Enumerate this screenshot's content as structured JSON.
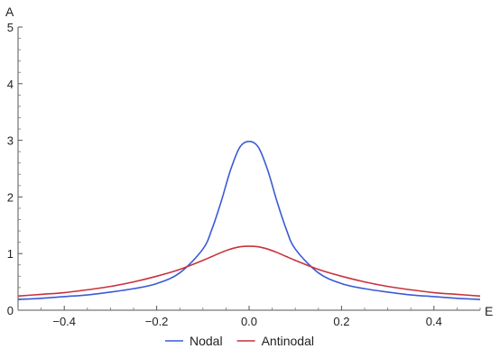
{
  "chart_data": {
    "type": "line",
    "xlabel": "E",
    "ylabel": "A",
    "xlim": [
      -0.5,
      0.5
    ],
    "ylim": [
      0,
      5
    ],
    "xticks": [
      -0.4,
      -0.2,
      0.0,
      0.2,
      0.4
    ],
    "xtick_labels": [
      "−0.4",
      "−0.2",
      "0.0",
      "0.2",
      "0.4"
    ],
    "yticks": [
      0,
      1,
      2,
      3,
      4,
      5
    ],
    "ytick_labels": [
      "0",
      "1",
      "2",
      "3",
      "4",
      "5"
    ],
    "grid": false,
    "legend_position": "bottom",
    "series": [
      {
        "name": "Nodal",
        "color": "#3a5bd6",
        "x": [
          -0.5,
          -0.45,
          -0.4,
          -0.35,
          -0.3,
          -0.25,
          -0.2,
          -0.15,
          -0.1,
          -0.08,
          -0.06,
          -0.04,
          -0.02,
          0.0,
          0.02,
          0.04,
          0.06,
          0.08,
          0.1,
          0.15,
          0.2,
          0.25,
          0.3,
          0.35,
          0.4,
          0.45,
          0.5
        ],
        "y": [
          0.19,
          0.21,
          0.24,
          0.27,
          0.32,
          0.38,
          0.47,
          0.66,
          1.08,
          1.44,
          1.93,
          2.48,
          2.88,
          2.98,
          2.88,
          2.48,
          1.93,
          1.44,
          1.08,
          0.66,
          0.47,
          0.38,
          0.32,
          0.27,
          0.24,
          0.21,
          0.19
        ]
      },
      {
        "name": "Antinodal",
        "color": "#c8323c",
        "x": [
          -0.5,
          -0.45,
          -0.4,
          -0.35,
          -0.3,
          -0.25,
          -0.2,
          -0.15,
          -0.1,
          -0.08,
          -0.06,
          -0.04,
          -0.02,
          0.0,
          0.02,
          0.04,
          0.06,
          0.08,
          0.1,
          0.15,
          0.2,
          0.25,
          0.3,
          0.35,
          0.4,
          0.45,
          0.5
        ],
        "y": [
          0.25,
          0.28,
          0.31,
          0.36,
          0.42,
          0.5,
          0.6,
          0.72,
          0.88,
          0.95,
          1.02,
          1.08,
          1.12,
          1.13,
          1.12,
          1.08,
          1.02,
          0.95,
          0.88,
          0.72,
          0.6,
          0.5,
          0.42,
          0.36,
          0.31,
          0.28,
          0.25
        ]
      }
    ]
  }
}
